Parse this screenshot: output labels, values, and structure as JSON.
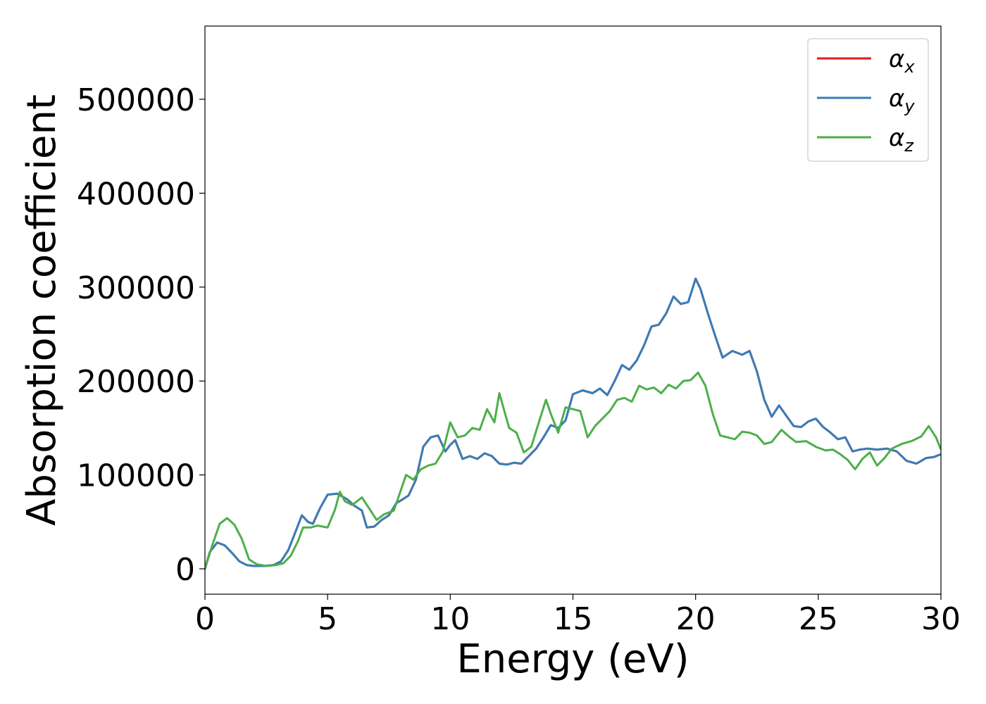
{
  "chart_data": {
    "type": "line",
    "title": "",
    "xlabel": "Energy (eV)",
    "ylabel": "Absorption coefficient",
    "xlim": [
      0,
      30
    ],
    "ylim": [
      -27000,
      578000
    ],
    "xticks": [
      0,
      5,
      10,
      15,
      20,
      25,
      30
    ],
    "yticks": [
      0,
      100000,
      200000,
      300000,
      400000,
      500000
    ],
    "grid": false,
    "legend_position": "top-right",
    "series": [
      {
        "name": "α",
        "subscript": "x",
        "color": "#e41a1c",
        "x": [
          0,
          0.2,
          0.5,
          0.8,
          1.1,
          1.4,
          1.7,
          2.0,
          2.4,
          2.8,
          3.1,
          3.4,
          3.7,
          3.95,
          4.2,
          4.4,
          4.7,
          5.0,
          5.4,
          5.8,
          6.1,
          6.4,
          6.6,
          6.9,
          7.2,
          7.5,
          7.8,
          8.0,
          8.3,
          8.6,
          8.9,
          9.2,
          9.5,
          9.8,
          10.0,
          10.2,
          10.5,
          10.8,
          11.1,
          11.4,
          11.7,
          12.0,
          12.3,
          12.6,
          12.9,
          13.2,
          13.5,
          13.8,
          14.1,
          14.4,
          14.7,
          15.0,
          15.4,
          15.8,
          16.1,
          16.4,
          16.7,
          17.0,
          17.3,
          17.6,
          17.9,
          18.2,
          18.5,
          18.8,
          19.1,
          19.4,
          19.7,
          20.0,
          20.2,
          20.5,
          20.8,
          21.1,
          21.5,
          21.9,
          22.2,
          22.5,
          22.8,
          23.1,
          23.4,
          23.7,
          24.0,
          24.3,
          24.6,
          24.9,
          25.2,
          25.5,
          25.8,
          26.1,
          26.4,
          26.7,
          27.0,
          27.4,
          27.8,
          28.2,
          28.6,
          29.0,
          29.4,
          29.7,
          30.0
        ],
        "y": [
          0,
          18000,
          28000,
          25000,
          17000,
          8000,
          4000,
          3000,
          3000,
          4000,
          8000,
          20000,
          40000,
          57000,
          50000,
          48000,
          65000,
          79000,
          80000,
          74000,
          67000,
          62000,
          44000,
          45000,
          52000,
          57000,
          70000,
          73000,
          78000,
          95000,
          130000,
          140000,
          142000,
          125000,
          132000,
          137000,
          117000,
          120000,
          117000,
          123000,
          120000,
          112000,
          111000,
          113000,
          112000,
          120000,
          128000,
          140000,
          153000,
          150000,
          158000,
          186000,
          190000,
          187000,
          192000,
          185000,
          200000,
          217000,
          212000,
          222000,
          238000,
          258000,
          260000,
          272000,
          290000,
          282000,
          284000,
          309000,
          298000,
          272000,
          248000,
          225000,
          232000,
          228000,
          232000,
          210000,
          180000,
          162000,
          174000,
          163000,
          152000,
          151000,
          157000,
          160000,
          151000,
          145000,
          138000,
          140000,
          125000,
          127000,
          128000,
          127000,
          128000,
          125000,
          115000,
          112000,
          118000,
          119000,
          122000
        ]
      },
      {
        "name": "α",
        "subscript": "y",
        "color": "#377eb8",
        "x": [
          0,
          0.2,
          0.5,
          0.8,
          1.1,
          1.4,
          1.7,
          2.0,
          2.4,
          2.8,
          3.1,
          3.4,
          3.7,
          3.95,
          4.2,
          4.4,
          4.7,
          5.0,
          5.4,
          5.8,
          6.1,
          6.4,
          6.6,
          6.9,
          7.2,
          7.5,
          7.8,
          8.0,
          8.3,
          8.6,
          8.9,
          9.2,
          9.5,
          9.8,
          10.0,
          10.2,
          10.5,
          10.8,
          11.1,
          11.4,
          11.7,
          12.0,
          12.3,
          12.6,
          12.9,
          13.2,
          13.5,
          13.8,
          14.1,
          14.4,
          14.7,
          15.0,
          15.4,
          15.8,
          16.1,
          16.4,
          16.7,
          17.0,
          17.3,
          17.6,
          17.9,
          18.2,
          18.5,
          18.8,
          19.1,
          19.4,
          19.7,
          20.0,
          20.2,
          20.5,
          20.8,
          21.1,
          21.5,
          21.9,
          22.2,
          22.5,
          22.8,
          23.1,
          23.4,
          23.7,
          24.0,
          24.3,
          24.6,
          24.9,
          25.2,
          25.5,
          25.8,
          26.1,
          26.4,
          26.7,
          27.0,
          27.4,
          27.8,
          28.2,
          28.6,
          29.0,
          29.4,
          29.7,
          30.0
        ],
        "y": [
          0,
          18000,
          28000,
          25000,
          17000,
          8000,
          4000,
          3000,
          3000,
          4000,
          8000,
          20000,
          40000,
          57000,
          50000,
          48000,
          65000,
          79000,
          80000,
          74000,
          67000,
          62000,
          44000,
          45000,
          52000,
          57000,
          70000,
          73000,
          78000,
          95000,
          130000,
          140000,
          142000,
          125000,
          132000,
          137000,
          117000,
          120000,
          117000,
          123000,
          120000,
          112000,
          111000,
          113000,
          112000,
          120000,
          128000,
          140000,
          153000,
          150000,
          158000,
          186000,
          190000,
          187000,
          192000,
          185000,
          200000,
          217000,
          212000,
          222000,
          238000,
          258000,
          260000,
          272000,
          290000,
          282000,
          284000,
          309000,
          298000,
          272000,
          248000,
          225000,
          232000,
          228000,
          232000,
          210000,
          180000,
          162000,
          174000,
          163000,
          152000,
          151000,
          157000,
          160000,
          151000,
          145000,
          138000,
          140000,
          125000,
          127000,
          128000,
          127000,
          128000,
          125000,
          115000,
          112000,
          118000,
          119000,
          122000
        ]
      },
      {
        "name": "α",
        "subscript": "z",
        "color": "#4daf4a",
        "x": [
          0,
          0.3,
          0.6,
          0.9,
          1.2,
          1.5,
          1.8,
          2.1,
          2.5,
          2.9,
          3.2,
          3.5,
          3.8,
          4.0,
          4.3,
          4.6,
          5.0,
          5.3,
          5.5,
          5.7,
          6.0,
          6.2,
          6.4,
          6.7,
          7.0,
          7.3,
          7.7,
          8.0,
          8.2,
          8.5,
          8.8,
          9.1,
          9.4,
          9.7,
          10.0,
          10.3,
          10.6,
          10.9,
          11.2,
          11.5,
          11.8,
          12.0,
          12.4,
          12.7,
          13.0,
          13.3,
          13.6,
          13.9,
          14.1,
          14.4,
          14.7,
          15.0,
          15.3,
          15.6,
          15.9,
          16.2,
          16.5,
          16.8,
          17.1,
          17.4,
          17.7,
          18.0,
          18.3,
          18.6,
          18.9,
          19.2,
          19.5,
          19.8,
          20.1,
          20.4,
          20.7,
          21.0,
          21.3,
          21.6,
          21.9,
          22.2,
          22.5,
          22.8,
          23.1,
          23.5,
          23.8,
          24.1,
          24.5,
          24.9,
          25.3,
          25.6,
          25.9,
          26.2,
          26.5,
          26.8,
          27.1,
          27.4,
          27.7,
          28.0,
          28.4,
          28.8,
          29.2,
          29.5,
          29.8,
          30.0
        ],
        "y": [
          0,
          25000,
          48000,
          54000,
          47000,
          32000,
          10000,
          5000,
          3000,
          4000,
          6000,
          14000,
          30000,
          44000,
          44000,
          46000,
          44000,
          63000,
          82000,
          72000,
          68000,
          72000,
          76000,
          64000,
          52000,
          58000,
          62000,
          85000,
          100000,
          95000,
          106000,
          110000,
          112000,
          125000,
          156000,
          140000,
          142000,
          150000,
          148000,
          170000,
          156000,
          187000,
          150000,
          145000,
          124000,
          130000,
          155000,
          180000,
          165000,
          145000,
          172000,
          170000,
          168000,
          140000,
          152000,
          160000,
          168000,
          180000,
          182000,
          178000,
          195000,
          191000,
          193000,
          187000,
          196000,
          192000,
          200000,
          201000,
          209000,
          195000,
          165000,
          142000,
          140000,
          138000,
          146000,
          145000,
          142000,
          133000,
          135000,
          148000,
          141000,
          135000,
          136000,
          130000,
          126000,
          127000,
          122000,
          116000,
          106000,
          117000,
          124000,
          110000,
          118000,
          128000,
          133000,
          136000,
          141000,
          152000,
          140000,
          127000
        ]
      }
    ]
  }
}
